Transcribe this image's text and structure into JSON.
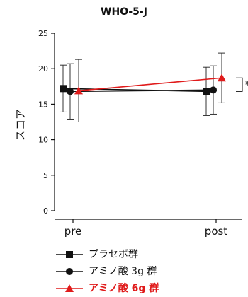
{
  "chart_data": {
    "type": "line",
    "title": "WHO-5-J",
    "subtitle": "",
    "xlabel": "",
    "ylabel": "スコア",
    "categories": [
      "pre",
      "post"
    ],
    "ylim": [
      0,
      25
    ],
    "yticks": [
      0,
      5,
      10,
      15,
      20,
      25
    ],
    "grid": false,
    "legend_position": "bottom",
    "series": [
      {
        "name": "プラセボ群",
        "marker": "square",
        "color": "#111111",
        "values": [
          17.2,
          16.8
        ],
        "error": [
          3.3,
          3.4
        ]
      },
      {
        "name": "アミノ酸 3g 群",
        "marker": "circle",
        "color": "#111111",
        "values": [
          16.8,
          17.0
        ],
        "error": [
          3.9,
          3.4
        ]
      },
      {
        "name": "アミノ酸 6g 群",
        "marker": "triangle",
        "color": "#e01b1b",
        "values": [
          16.9,
          18.7
        ],
        "error": [
          4.4,
          3.5
        ]
      }
    ],
    "annotations": [
      {
        "type": "significance-bracket",
        "text": "*",
        "between_series": [
          "プラセボ群",
          "アミノ酸 6g 群"
        ],
        "at_category": "post"
      }
    ]
  }
}
